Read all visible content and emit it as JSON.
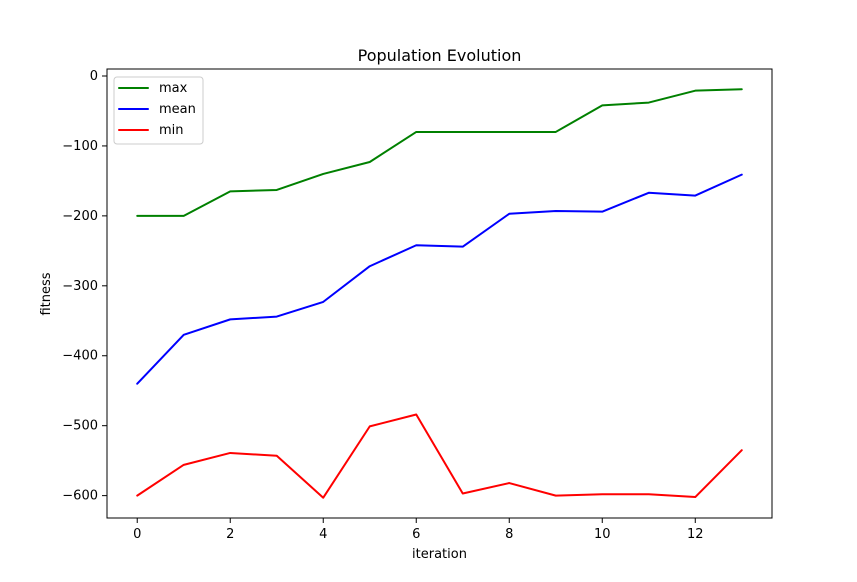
{
  "chart_data": {
    "type": "line",
    "title": "Population Evolution",
    "xlabel": "iteration",
    "ylabel": "fitness",
    "xlim": [
      -0.65,
      13.65
    ],
    "ylim": [
      -632,
      10
    ],
    "grid": false,
    "legend_position": "top-left",
    "x": [
      0,
      1,
      2,
      3,
      4,
      5,
      6,
      7,
      8,
      9,
      10,
      11,
      12,
      13
    ],
    "x_ticks": [
      0,
      2,
      4,
      6,
      8,
      10,
      12
    ],
    "x_tick_labels": [
      "0",
      "2",
      "4",
      "6",
      "8",
      "10",
      "12"
    ],
    "y_ticks": [
      0,
      -100,
      -200,
      -300,
      -400,
      -500,
      -600
    ],
    "y_tick_labels": [
      "0",
      "−100",
      "−200",
      "−300",
      "−400",
      "−500",
      "−600"
    ],
    "series": [
      {
        "name": "max",
        "color": "#008000",
        "values": [
          -200,
          -200,
          -165,
          -163,
          -140,
          -123,
          -80,
          -80,
          -80,
          -80,
          -42,
          -38,
          -21,
          -19
        ]
      },
      {
        "name": "mean",
        "color": "#0000ff",
        "values": [
          -440,
          -370,
          -348,
          -344,
          -323,
          -272,
          -242,
          -244,
          -197,
          -193,
          -194,
          -167,
          -171,
          -141
        ]
      },
      {
        "name": "min",
        "color": "#ff0000",
        "values": [
          -600,
          -556,
          -539,
          -543,
          -603,
          -501,
          -484,
          -597,
          -582,
          -600,
          -598,
          -598,
          -602,
          -535
        ]
      }
    ]
  }
}
